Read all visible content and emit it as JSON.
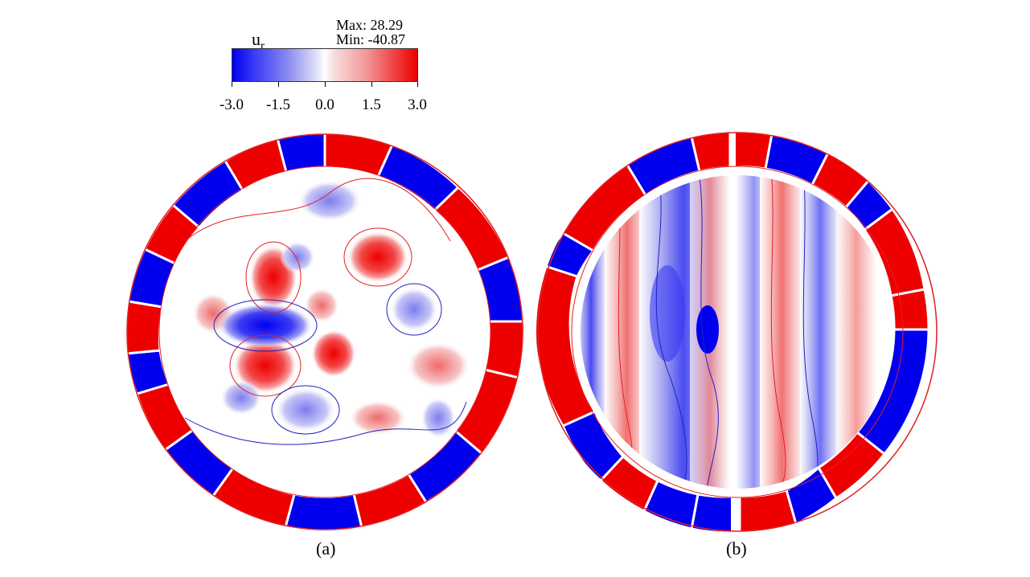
{
  "colorbar": {
    "variable_main": "u",
    "variable_sub": "r",
    "max_label": "Max: 28.29",
    "min_label": "Min: -40.87",
    "ticks": [
      "-3.0",
      "-1.5",
      "0.0",
      "1.5",
      "3.0"
    ],
    "colors": {
      "negative": "#0000ee",
      "zero": "#ffffff",
      "positive": "#ee0000"
    }
  },
  "panels": [
    {
      "label": "(a)"
    },
    {
      "label": "(b)"
    }
  ]
}
